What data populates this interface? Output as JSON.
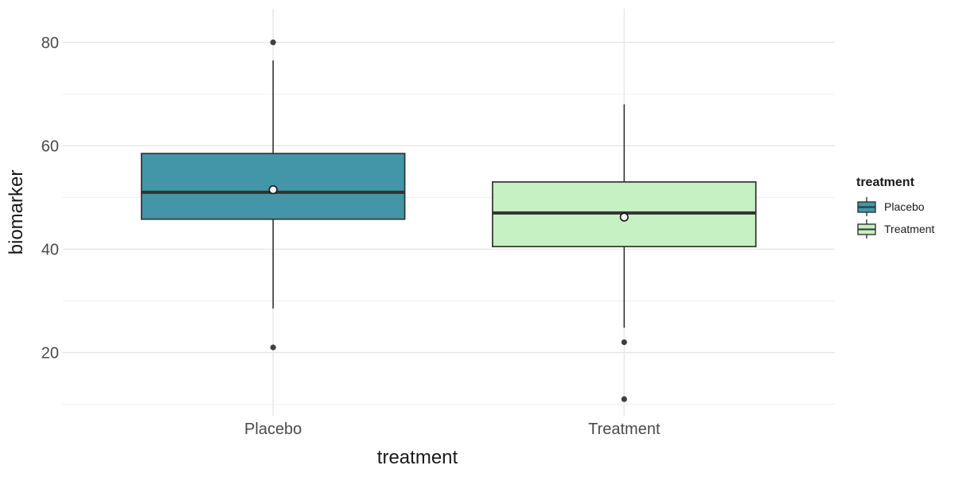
{
  "chart_data": {
    "type": "boxplot",
    "title": "",
    "xlabel": "treatment",
    "ylabel": "biomarker",
    "categories": [
      "Placebo",
      "Treatment"
    ],
    "yticks": [
      20,
      40,
      60,
      80
    ],
    "yminor_ticks": [
      10,
      30,
      50,
      70
    ],
    "ylim": [
      7.7,
      86.5
    ],
    "grid": "horizontal-major-minor plus one vertical gridline per category",
    "legend": {
      "title": "treatment",
      "position": "right",
      "entries": [
        {
          "label": "Placebo",
          "fill": "#4296a7"
        },
        {
          "label": "Treatment",
          "fill": "#c6f1c2"
        }
      ]
    },
    "series": [
      {
        "name": "Placebo",
        "fill": "#4296a7",
        "stats": {
          "whisker_low": 28.5,
          "q1": 45.8,
          "median": 51,
          "q3": 58.5,
          "whisker_high": 76.5,
          "mean": 51.5,
          "outliers": [
            80,
            21
          ]
        }
      },
      {
        "name": "Treatment",
        "fill": "#c6f1c2",
        "stats": {
          "whisker_low": 24.8,
          "q1": 40.5,
          "median": 47,
          "q3": 53,
          "whisker_high": 68,
          "mean": 46.2,
          "outliers": [
            22,
            11
          ]
        }
      }
    ],
    "style": {
      "box_border": "#333333",
      "median_color": "#333333",
      "whisker_color": "#333333",
      "outlier_color": "#3f3f3f",
      "mean_fill": "#ffffff",
      "mean_stroke": "#1a1a1a",
      "grid_major": "#e7e7e7",
      "grid_minor": "#f0f0f0",
      "tick_label_color": "#4a4a4a",
      "axis_title_color": "#1a1a1a",
      "background": "#ffffff"
    }
  }
}
